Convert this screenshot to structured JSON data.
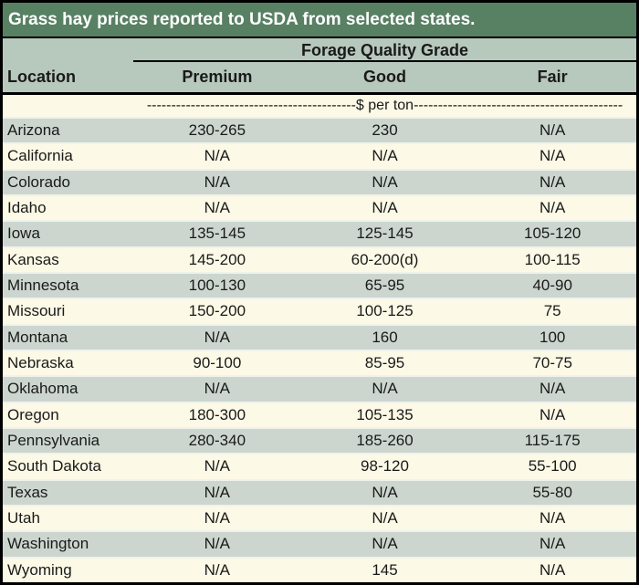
{
  "title": "Grass hay prices reported to USDA from selected states.",
  "table": {
    "group_header": "Forage Quality Grade",
    "columns": [
      "Location",
      "Premium",
      "Good",
      "Fair"
    ],
    "units_text": "-------------------------------------------$ per ton-------------------------------------------",
    "rows": [
      {
        "location": "Arizona",
        "premium": "230-265",
        "good": "230",
        "fair": "N/A"
      },
      {
        "location": "California",
        "premium": "N/A",
        "good": "N/A",
        "fair": "N/A"
      },
      {
        "location": "Colorado",
        "premium": "N/A",
        "good": "N/A",
        "fair": "N/A"
      },
      {
        "location": "Idaho",
        "premium": "N/A",
        "good": "N/A",
        "fair": "N/A"
      },
      {
        "location": "Iowa",
        "premium": "135-145",
        "good": "125-145",
        "fair": "105-120"
      },
      {
        "location": "Kansas",
        "premium": "145-200",
        "good": "60-200(d)",
        "fair": "100-115"
      },
      {
        "location": "Minnesota",
        "premium": "100-130",
        "good": "65-95",
        "fair": "40-90"
      },
      {
        "location": "Missouri",
        "premium": "150-200",
        "good": "100-125",
        "fair": "75"
      },
      {
        "location": "Montana",
        "premium": "N/A",
        "good": "160",
        "fair": "100"
      },
      {
        "location": "Nebraska",
        "premium": "90-100",
        "good": "85-95",
        "fair": "70-75"
      },
      {
        "location": "Oklahoma",
        "premium": "N/A",
        "good": "N/A",
        "fair": "N/A"
      },
      {
        "location": "Oregon",
        "premium": "180-300",
        "good": "105-135",
        "fair": "N/A"
      },
      {
        "location": "Pennsylvania",
        "premium": "280-340",
        "good": "185-260",
        "fair": "115-175"
      },
      {
        "location": "South Dakota",
        "premium": "N/A",
        "good": "98-120",
        "fair": "55-100"
      },
      {
        "location": "Texas",
        "premium": "N/A",
        "good": "N/A",
        "fair": "55-80"
      },
      {
        "location": "Utah",
        "premium": "N/A",
        "good": "N/A",
        "fair": "N/A"
      },
      {
        "location": "Washington",
        "premium": "N/A",
        "good": "N/A",
        "fair": "N/A"
      },
      {
        "location": "Wyoming",
        "premium": "N/A",
        "good": "145",
        "fair": "N/A"
      }
    ]
  },
  "chart_data": {
    "type": "table",
    "title": "Grass hay prices reported to USDA from selected states.",
    "group_header": "Forage Quality Grade",
    "columns": [
      "Location",
      "Premium",
      "Good",
      "Fair"
    ],
    "units": "$ per ton",
    "rows": [
      [
        "Arizona",
        "230-265",
        "230",
        "N/A"
      ],
      [
        "California",
        "N/A",
        "N/A",
        "N/A"
      ],
      [
        "Colorado",
        "N/A",
        "N/A",
        "N/A"
      ],
      [
        "Idaho",
        "N/A",
        "N/A",
        "N/A"
      ],
      [
        "Iowa",
        "135-145",
        "125-145",
        "105-120"
      ],
      [
        "Kansas",
        "145-200",
        "60-200(d)",
        "100-115"
      ],
      [
        "Minnesota",
        "100-130",
        "65-95",
        "40-90"
      ],
      [
        "Missouri",
        "150-200",
        "100-125",
        "75"
      ],
      [
        "Montana",
        "N/A",
        "160",
        "100"
      ],
      [
        "Nebraska",
        "90-100",
        "85-95",
        "70-75"
      ],
      [
        "Oklahoma",
        "N/A",
        "N/A",
        "N/A"
      ],
      [
        "Oregon",
        "180-300",
        "105-135",
        "N/A"
      ],
      [
        "Pennsylvania",
        "280-340",
        "185-260",
        "115-175"
      ],
      [
        "South Dakota",
        "N/A",
        "98-120",
        "55-100"
      ],
      [
        "Texas",
        "N/A",
        "N/A",
        "55-80"
      ],
      [
        "Utah",
        "N/A",
        "N/A",
        "N/A"
      ],
      [
        "Washington",
        "N/A",
        "N/A",
        "N/A"
      ],
      [
        "Wyoming",
        "N/A",
        "145",
        "N/A"
      ]
    ]
  },
  "colors": {
    "title_bg": "#588063",
    "title_text": "#ffffff",
    "header_bg": "#b7c8bc",
    "row_even_bg": "#ccd6ce",
    "row_odd_bg": "#fcf9e6",
    "border": "#000000",
    "row_separator": "#f0f3ec",
    "text": "#1a1a1a"
  }
}
